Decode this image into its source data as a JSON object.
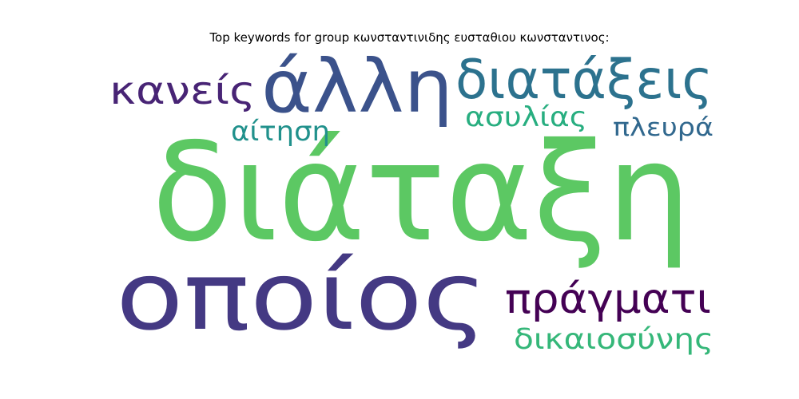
{
  "title": "Top keywords for group κωνσταντινιδης ευσταθιου κωνσταντινος:",
  "words": [
    {
      "text": "διάταξη",
      "color": "#5cc863"
    },
    {
      "text": "οποίος",
      "color": "#443983"
    },
    {
      "text": "άλλη",
      "color": "#3b528b"
    },
    {
      "text": "διατάξεις",
      "color": "#2c728e"
    },
    {
      "text": "κανείς",
      "color": "#482475"
    },
    {
      "text": "πράγματι",
      "color": "#440154"
    },
    {
      "text": "ασυλίας",
      "color": "#28ae80"
    },
    {
      "text": "αίτηση",
      "color": "#21918c"
    },
    {
      "text": "πλευρά",
      "color": "#31688e"
    },
    {
      "text": "δικαιοσύνης",
      "color": "#35b779"
    }
  ]
}
